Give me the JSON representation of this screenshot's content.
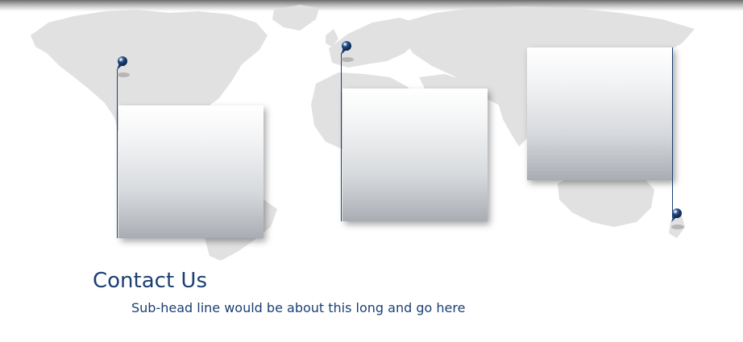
{
  "contact": {
    "title": "Contact Us",
    "subhead": "Sub-head line would be about this long and go here"
  },
  "colors": {
    "brand_blue": "#1b3f73",
    "map_gray": "#e1e1e1",
    "card_top": "#ffffff",
    "card_bottom": "#a9adb3"
  },
  "icons": {
    "pin": "map-pin-icon",
    "map": "world-map"
  }
}
